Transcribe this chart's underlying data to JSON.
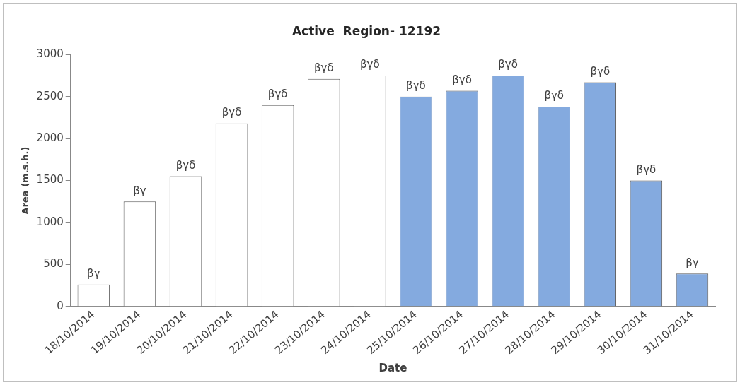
{
  "chart_data": {
    "type": "bar",
    "title": "Active  Region- 12192",
    "xlabel": "Date",
    "ylabel": "Area (m.s.h.)",
    "categories": [
      "18/10/2014",
      "19/10/2014",
      "20/10/2014",
      "21/10/2014",
      "22/10/2014",
      "23/10/2014",
      "24/10/2014",
      "25/10/2014",
      "26/10/2014",
      "27/10/2014",
      "28/10/2014",
      "29/10/2014",
      "30/10/2014",
      "31/10/2014"
    ],
    "values": [
      260,
      1250,
      1550,
      2180,
      2400,
      2710,
      2750,
      2500,
      2570,
      2750,
      2380,
      2670,
      1500,
      390
    ],
    "colors": [
      "#ffffff",
      "#ffffff",
      "#ffffff",
      "#ffffff",
      "#ffffff",
      "#ffffff",
      "#ffffff",
      "#84aadf",
      "#84aadf",
      "#84aadf",
      "#84aadf",
      "#84aadf",
      "#84aadf",
      "#84aadf"
    ],
    "value_labels": [
      "βγ",
      "βγ",
      "βγδ",
      "βγδ",
      "βγδ",
      "βγδ",
      "βγδ",
      "βγδ",
      "βγδ",
      "βγδ",
      "βγδ",
      "βγδ",
      "βγδ",
      "βγ"
    ],
    "ylim": [
      0,
      3000
    ],
    "yticks": [
      0,
      500,
      1000,
      1500,
      2000,
      2500,
      3000
    ],
    "grid": false,
    "legend": false
  }
}
